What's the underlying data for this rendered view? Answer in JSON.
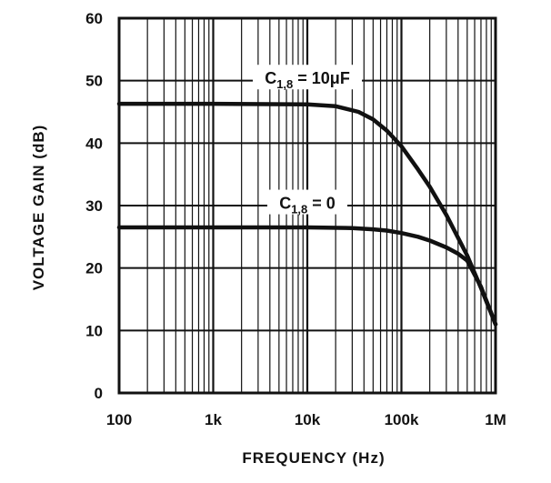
{
  "chart_data": {
    "type": "line",
    "title": "",
    "xlabel": "FREQUENCY (Hz)",
    "ylabel": "VOLTAGE GAIN (dB)",
    "x_scale": "log",
    "xlim": [
      100,
      1000000
    ],
    "ylim": [
      0,
      60
    ],
    "grid": true,
    "x_tick_labels": [
      "100",
      "1k",
      "10k",
      "100k",
      "1M"
    ],
    "x_tick_values": [
      100,
      1000,
      10000,
      100000,
      1000000
    ],
    "y_tick_labels": [
      "0",
      "10",
      "20",
      "30",
      "40",
      "50",
      "60"
    ],
    "y_tick_values": [
      0,
      10,
      20,
      30,
      40,
      50,
      60
    ],
    "series": [
      {
        "name_main": "C",
        "name_sub": "1,8",
        "name_tail": " = 10μF",
        "x": [
          100,
          1000,
          10000,
          20000,
          35000,
          50000,
          70000,
          100000,
          150000,
          200000,
          300000,
          500000,
          700000,
          1000000
        ],
        "y": [
          46.3,
          46.3,
          46.2,
          45.9,
          45.0,
          43.8,
          42.0,
          39.5,
          35.8,
          33.0,
          28.5,
          22.0,
          16.8,
          11.0
        ]
      },
      {
        "name_main": "C",
        "name_sub": "1,8",
        "name_tail": " = 0",
        "x": [
          100,
          1000,
          10000,
          30000,
          50000,
          70000,
          100000,
          150000,
          200000,
          300000,
          400000,
          500000,
          700000,
          1000000
        ],
        "y": [
          26.5,
          26.5,
          26.5,
          26.4,
          26.2,
          26.0,
          25.6,
          25.0,
          24.4,
          23.3,
          22.3,
          21.2,
          17.0,
          11.0
        ]
      }
    ]
  }
}
